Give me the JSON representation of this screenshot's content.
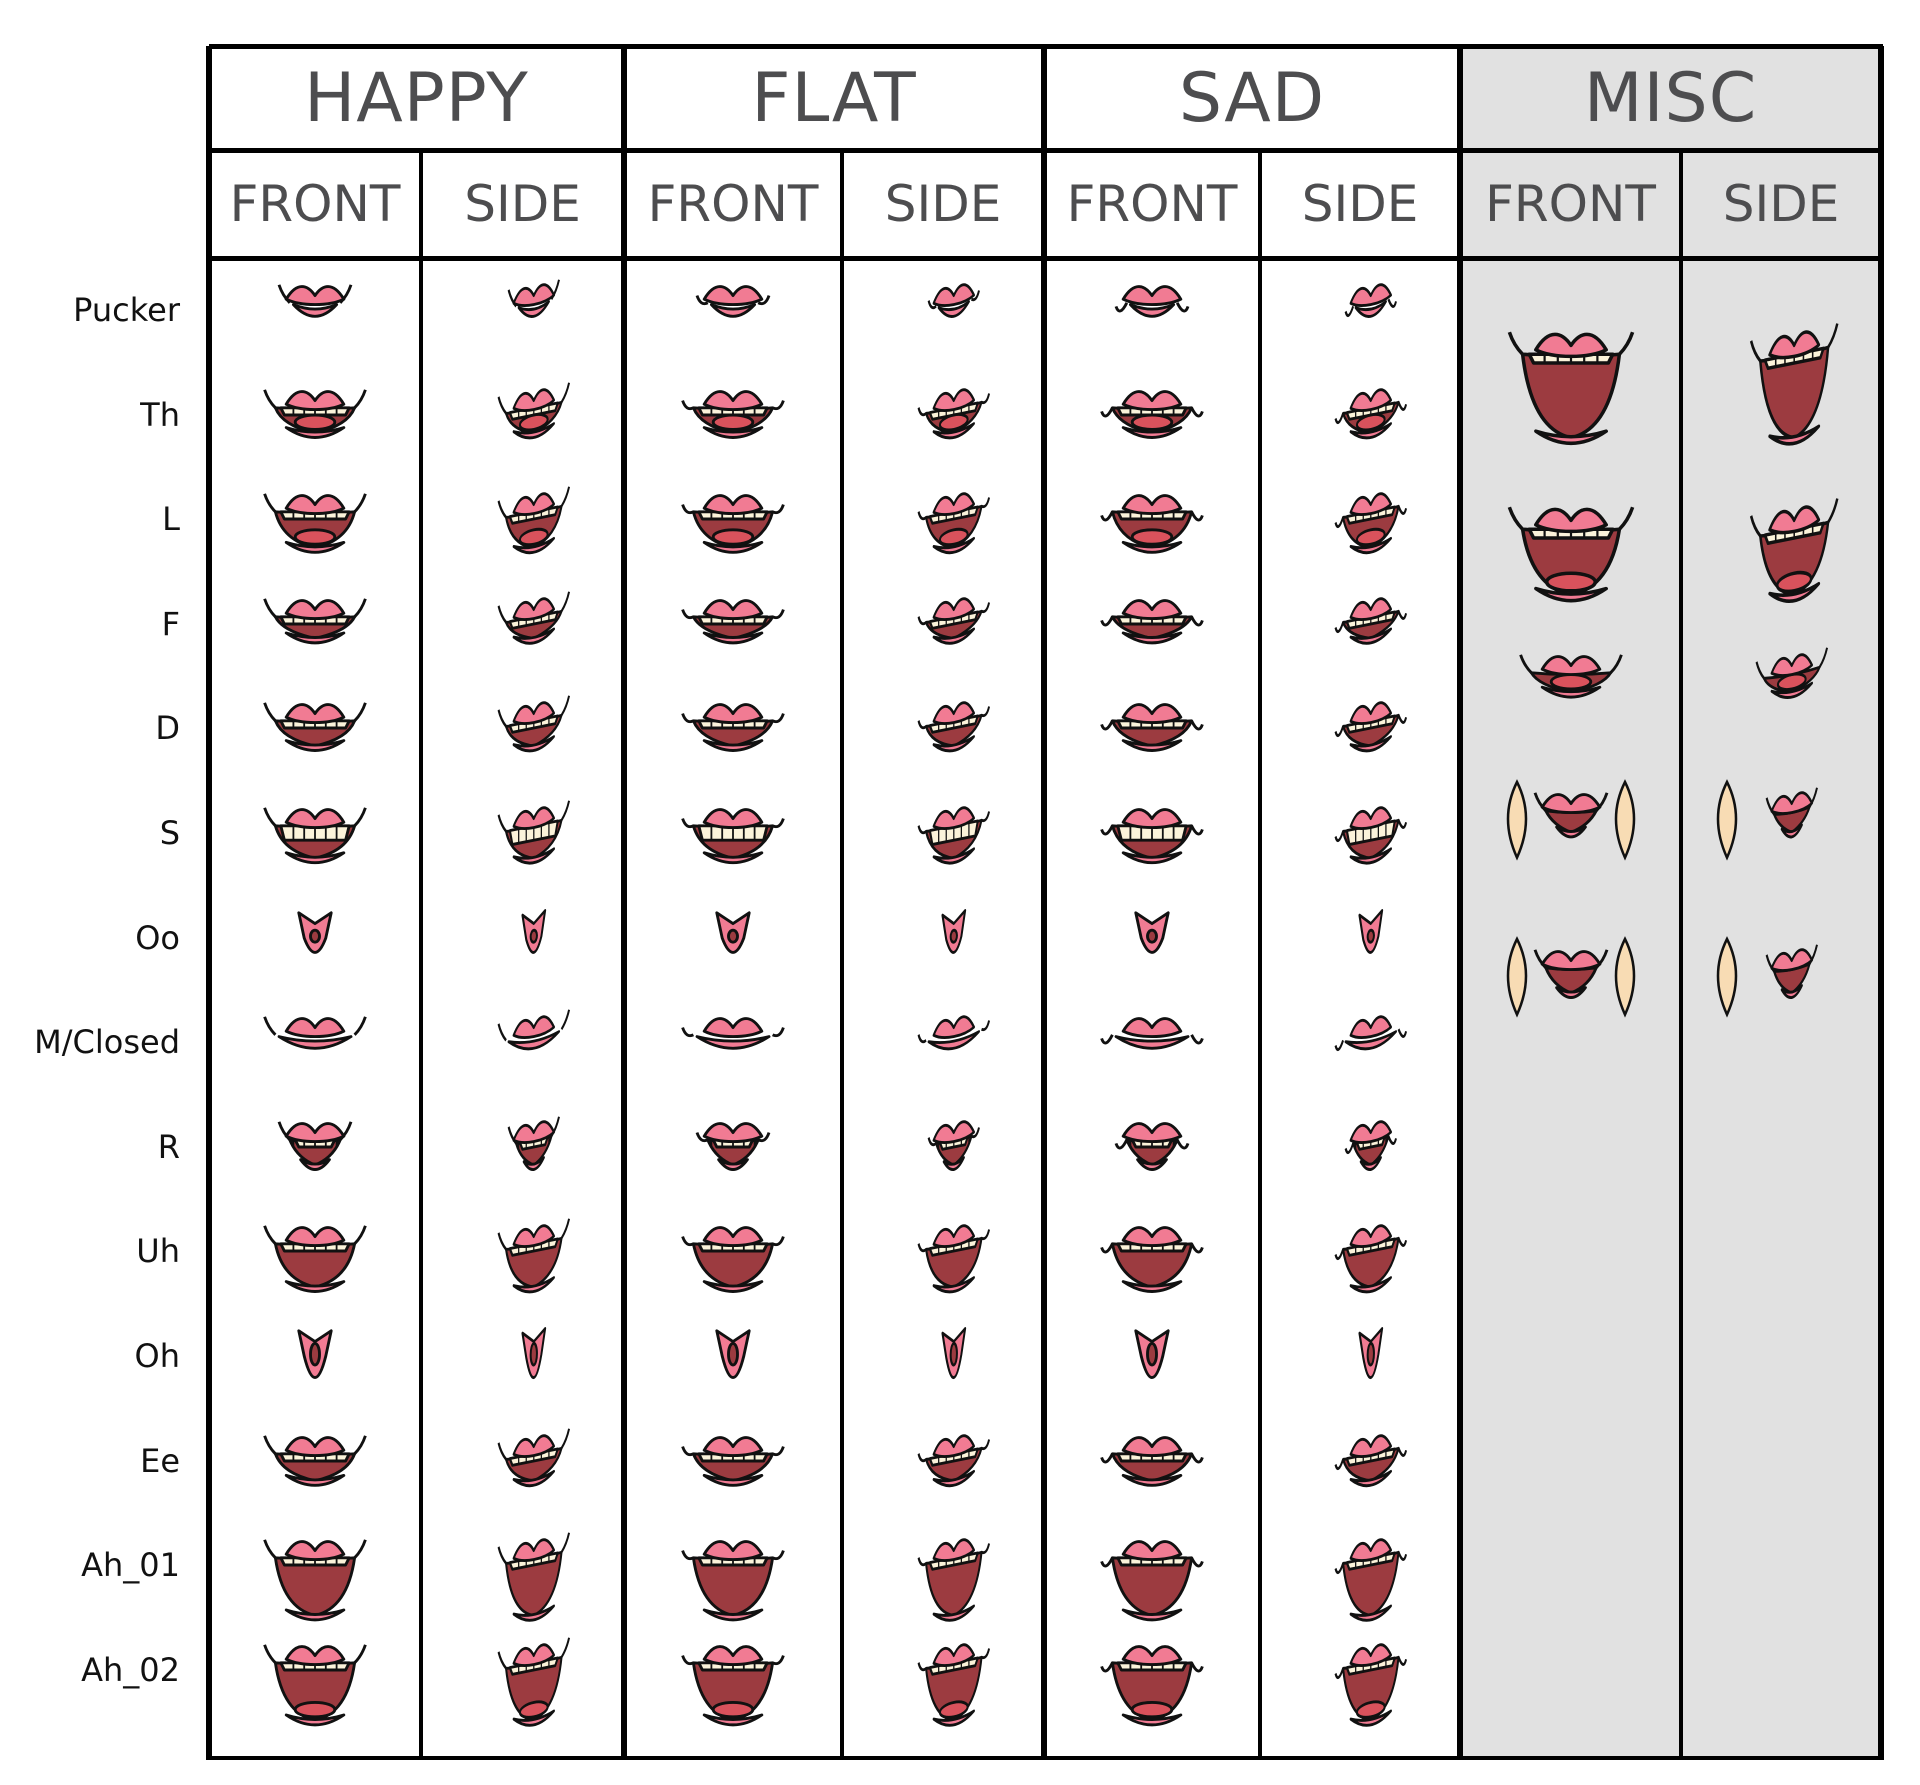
{
  "groups": [
    {
      "title": "HAPPY",
      "mood": "happy",
      "sub": [
        "FRONT",
        "SIDE"
      ]
    },
    {
      "title": "FLAT",
      "mood": "flat",
      "sub": [
        "FRONT",
        "SIDE"
      ]
    },
    {
      "title": "SAD",
      "mood": "sad",
      "sub": [
        "FRONT",
        "SIDE"
      ]
    },
    {
      "title": "MISC",
      "mood": "misc",
      "sub": [
        "FRONT",
        "SIDE"
      ]
    }
  ],
  "rows": [
    "Pucker",
    "Th",
    "L",
    "F",
    "D",
    "S",
    "Oo",
    "M/Closed",
    "R",
    "Uh",
    "Oh",
    "Ee",
    "Ah_01",
    "Ah_02"
  ],
  "misc_shapes": [
    "wide-open-mouth",
    "open-tongue-mouth",
    "tongue-out-mouth",
    "cheek-pucker-mouth",
    "cheek-open-mouth"
  ],
  "colors": {
    "lip": "#f17b93",
    "mouth_interior": "#9c3b40",
    "tongue": "#d9525c",
    "teeth": "#fbf3da",
    "cheek": "#f8dcb4",
    "misc_background": "#e1e1e1",
    "header_text": "#4d4d4f"
  }
}
